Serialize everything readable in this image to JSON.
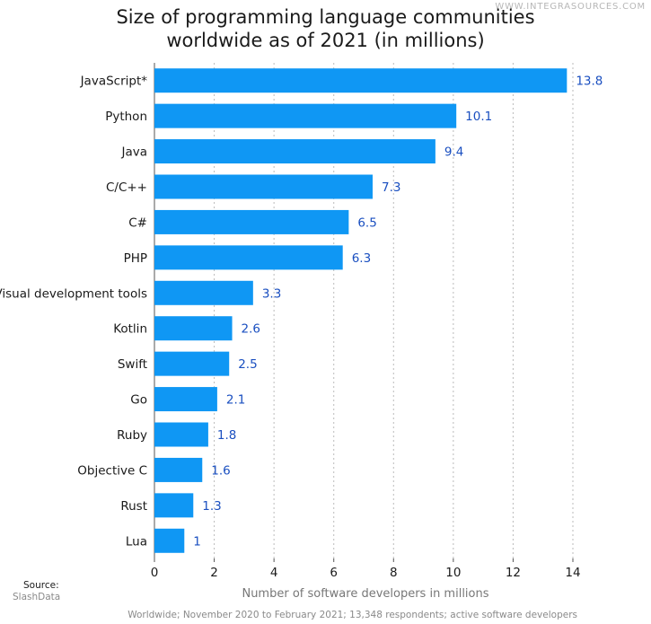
{
  "watermark": "WWW.INTEGRASOURCES.COM",
  "title_line1": "Size of programming language communities",
  "title_line2": "worldwide as of 2021 (in millions)",
  "source_label": "Source:",
  "source_name": "SlashData",
  "footnote": "Worldwide; November 2020 to February 2021; 13,348 respondents; active software developers",
  "colors": {
    "bar": "#0f97f4",
    "value_text": "#1a4fc0",
    "grid": "#bbbbbb"
  },
  "chart_data": {
    "type": "bar",
    "orientation": "horizontal",
    "title": "Size of programming language communities worldwide as of 2021 (in millions)",
    "xlabel": "Number of software developers in millions",
    "ylabel": "",
    "xlim": [
      0,
      14
    ],
    "xticks": [
      0,
      2,
      4,
      6,
      8,
      10,
      12,
      14
    ],
    "grid": true,
    "categories": [
      "JavaScript*",
      "Python",
      "Java",
      "C/C++",
      "C#",
      "PHP",
      "Visual development tools",
      "Kotlin",
      "Swift",
      "Go",
      "Ruby",
      "Objective C",
      "Rust",
      "Lua"
    ],
    "values": [
      13.8,
      10.1,
      9.4,
      7.3,
      6.5,
      6.3,
      3.3,
      2.6,
      2.5,
      2.1,
      1.8,
      1.6,
      1.3,
      1
    ]
  }
}
